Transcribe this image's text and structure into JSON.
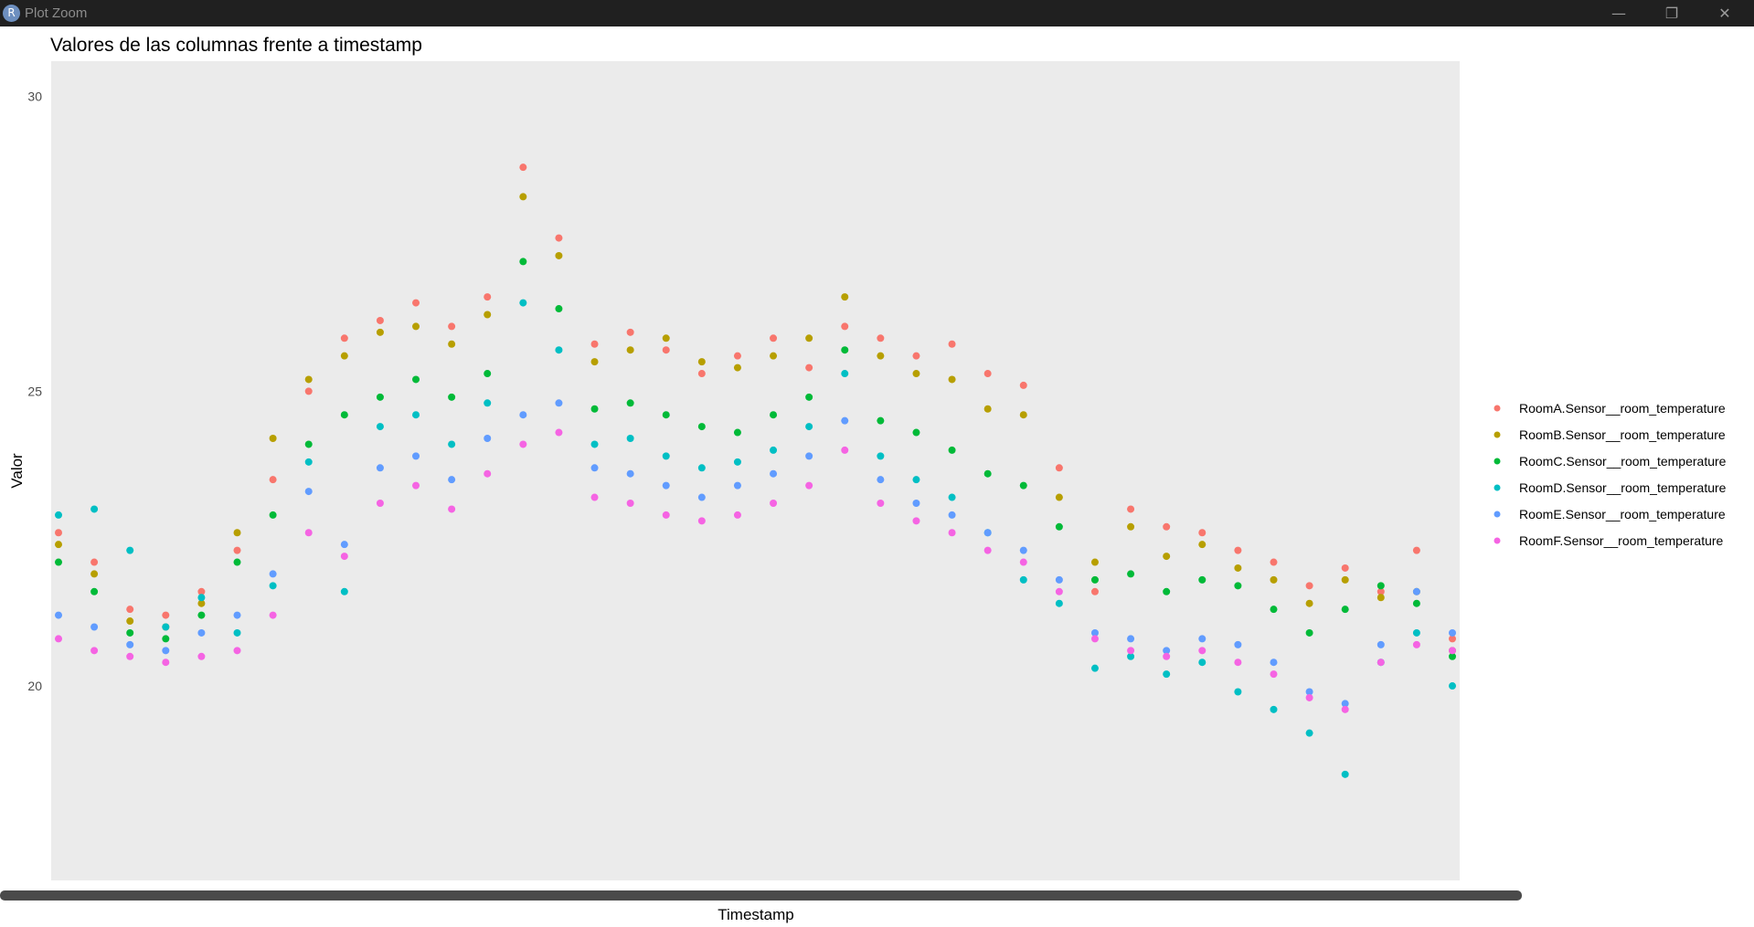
{
  "window": {
    "title": "Plot Zoom",
    "app_icon": "r-logo-icon",
    "controls": {
      "minimize": "minimize-icon",
      "maximize": "restore-icon",
      "close": "close-icon"
    }
  },
  "colors": {
    "panel_bg": "#ebebeb",
    "RoomA": "#F8766D",
    "RoomB": "#B79F00",
    "RoomC": "#00BA38",
    "RoomD": "#00BFC4",
    "RoomE": "#619CFF",
    "RoomF": "#F564E3"
  },
  "chart_data": {
    "type": "scatter",
    "title": "Valores de las columnas frente a timestamp",
    "xlabel": "Timestamp",
    "ylabel": "Valor",
    "ylim": [
      16.7,
      30.6
    ],
    "yticks": [
      20,
      25,
      30
    ],
    "x_ticks_shown": false,
    "grid": false,
    "legend_position": "right",
    "x_positions": "evenly spaced timestamps (unlabeled), 40 sample points per series",
    "series": [
      {
        "name": "RoomA.Sensor__room_temperature",
        "color": "#F8766D",
        "values": [
          22.6,
          22.1,
          21.3,
          21.2,
          21.6,
          22.3,
          23.5,
          25.0,
          25.9,
          26.2,
          26.5,
          26.1,
          26.6,
          28.8,
          27.6,
          25.8,
          26.0,
          25.7,
          25.3,
          25.6,
          25.9,
          25.4,
          26.1,
          25.9,
          25.6,
          25.8,
          25.3,
          25.1,
          23.7,
          21.6,
          23.0,
          22.7,
          22.6,
          22.3,
          22.1,
          21.7,
          22.0,
          21.6,
          22.3,
          20.8
        ]
      },
      {
        "name": "RoomB.Sensor__room_temperature",
        "color": "#B79F00",
        "values": [
          22.4,
          21.9,
          21.1,
          21.0,
          21.4,
          22.6,
          24.2,
          25.2,
          25.6,
          26.0,
          26.1,
          25.8,
          26.3,
          28.3,
          27.3,
          25.5,
          25.7,
          25.9,
          25.5,
          25.4,
          25.6,
          25.9,
          26.6,
          25.6,
          25.3,
          25.2,
          24.7,
          24.6,
          23.2,
          22.1,
          22.7,
          22.2,
          22.4,
          22.0,
          21.8,
          21.4,
          21.8,
          21.5,
          21.6,
          20.6
        ]
      },
      {
        "name": "RoomC.Sensor__room_temperature",
        "color": "#00BA38",
        "values": [
          22.1,
          21.6,
          20.9,
          20.8,
          21.2,
          22.1,
          22.9,
          24.1,
          24.6,
          24.9,
          25.2,
          24.9,
          25.3,
          27.2,
          26.4,
          24.7,
          24.8,
          24.6,
          24.4,
          24.3,
          24.6,
          24.9,
          25.7,
          24.5,
          24.3,
          24.0,
          23.6,
          23.4,
          22.7,
          21.8,
          21.9,
          21.6,
          21.8,
          21.7,
          21.3,
          20.9,
          21.3,
          21.7,
          21.4,
          20.5
        ]
      },
      {
        "name": "RoomD.Sensor__room_temperature",
        "color": "#00BFC4",
        "values": [
          22.9,
          23.0,
          22.3,
          21.0,
          21.5,
          20.9,
          21.7,
          23.8,
          21.6,
          24.4,
          24.6,
          24.1,
          24.8,
          26.5,
          25.7,
          24.1,
          24.2,
          23.9,
          23.7,
          23.8,
          24.0,
          24.4,
          25.3,
          23.9,
          23.5,
          23.2,
          22.6,
          21.8,
          21.4,
          20.3,
          20.5,
          20.2,
          20.4,
          19.9,
          19.6,
          19.2,
          18.5,
          20.4,
          20.9,
          20.0
        ]
      },
      {
        "name": "RoomE.Sensor__room_temperature",
        "color": "#619CFF",
        "values": [
          21.2,
          21.0,
          20.7,
          20.6,
          20.9,
          21.2,
          21.9,
          23.3,
          22.4,
          23.7,
          23.9,
          23.5,
          24.2,
          24.6,
          24.8,
          23.7,
          23.6,
          23.4,
          23.2,
          23.4,
          23.6,
          23.9,
          24.5,
          23.5,
          23.1,
          22.9,
          22.6,
          22.3,
          21.8,
          20.9,
          20.8,
          20.6,
          20.8,
          20.7,
          20.4,
          19.9,
          19.7,
          20.7,
          21.6,
          20.9
        ]
      },
      {
        "name": "RoomF.Sensor__room_temperature",
        "color": "#F564E3",
        "values": [
          20.8,
          20.6,
          20.5,
          20.4,
          20.5,
          20.6,
          21.2,
          22.6,
          22.2,
          23.1,
          23.4,
          23.0,
          23.6,
          24.1,
          24.3,
          23.2,
          23.1,
          22.9,
          22.8,
          22.9,
          23.1,
          23.4,
          24.0,
          23.1,
          22.8,
          22.6,
          22.3,
          22.1,
          21.6,
          20.8,
          20.6,
          20.5,
          20.6,
          20.4,
          20.2,
          19.8,
          19.6,
          20.4,
          20.7,
          20.6
        ]
      }
    ]
  }
}
